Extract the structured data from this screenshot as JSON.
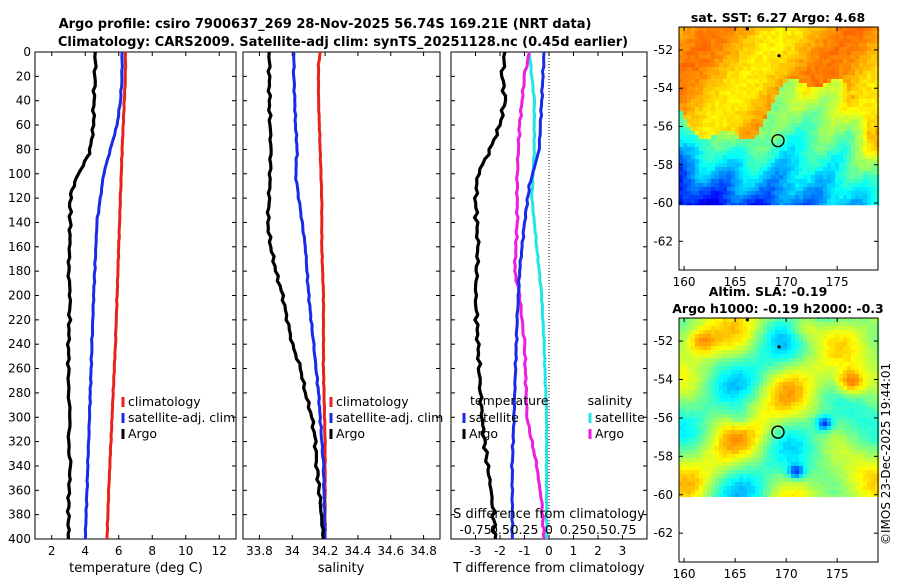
{
  "header": {
    "line1": "Argo profile: csiro 7900637_269 28-Nov-2025 56.74S 169.21E (NRT data)",
    "line2": "Climatology: CARS2009. Satellite-adj clim: synTS_20251128.nc (0.45d earlier)"
  },
  "footer_stamp": "©IMOS 23-Dec-2025 19:44:01",
  "colors": {
    "argo": "#000000",
    "clim": "#e8231e",
    "sat": "#1a2be8",
    "sal_sat": "#22e6e6",
    "sal_argo": "#ee1ee0"
  },
  "chart_data": [
    {
      "type": "line",
      "id": "temperature",
      "xlabel": "temperature (deg C)",
      "xlim": [
        1,
        13
      ],
      "xticks": [
        2,
        4,
        6,
        8,
        10,
        12
      ],
      "ylim": [
        400,
        0
      ],
      "yticks": [
        0,
        20,
        40,
        60,
        80,
        100,
        120,
        140,
        160,
        180,
        200,
        220,
        240,
        260,
        280,
        300,
        320,
        340,
        360,
        380,
        400
      ],
      "legend": [
        "climatology",
        "satellite-adj. clim",
        "Argo"
      ],
      "series": [
        {
          "name": "climatology",
          "color": "#e8231e",
          "x": [
            6.4,
            6.4,
            6.3,
            6.2,
            6.1,
            6.0,
            5.9,
            5.8,
            5.7,
            5.6,
            5.5,
            5.4,
            5.3
          ],
          "y": [
            0,
            20,
            50,
            80,
            120,
            160,
            200,
            240,
            270,
            300,
            330,
            360,
            400
          ]
        },
        {
          "name": "satellite-adj. clim",
          "color": "#1a2be8",
          "x": [
            6.2,
            6.2,
            6.1,
            5.9,
            5.5,
            5.1,
            4.9,
            4.7,
            4.6,
            4.5,
            4.4,
            4.3,
            4.2,
            4.1,
            4.0
          ],
          "y": [
            0,
            20,
            40,
            60,
            80,
            100,
            120,
            140,
            170,
            200,
            240,
            280,
            320,
            360,
            400
          ]
        },
        {
          "name": "Argo",
          "color": "#000000",
          "x": [
            4.6,
            4.6,
            4.5,
            4.5,
            4.3,
            4.0,
            3.6,
            3.3,
            3.1,
            3.1,
            3.0,
            3.1,
            3.0,
            3.0,
            3.1,
            3.0,
            3.1,
            3.0,
            3.0
          ],
          "y": [
            0,
            20,
            40,
            60,
            80,
            90,
            100,
            110,
            120,
            150,
            180,
            200,
            240,
            280,
            300,
            320,
            340,
            370,
            400
          ]
        }
      ]
    },
    {
      "type": "line",
      "id": "salinity",
      "xlabel": "salinity",
      "xlim": [
        33.7,
        34.9
      ],
      "xticks": [
        33.8,
        34,
        34.2,
        34.4,
        34.6,
        34.8
      ],
      "ylim": [
        400,
        0
      ],
      "legend": [
        "climatology",
        "satellite-adj. clim",
        "Argo"
      ],
      "series": [
        {
          "name": "climatology",
          "color": "#e8231e",
          "x": [
            34.17,
            34.16,
            34.16,
            34.17,
            34.18,
            34.18,
            34.19,
            34.19,
            34.2,
            34.2
          ],
          "y": [
            0,
            10,
            40,
            80,
            120,
            160,
            200,
            260,
            320,
            400
          ]
        },
        {
          "name": "satellite-adj. clim",
          "color": "#1a2be8",
          "x": [
            34.01,
            34.01,
            34.02,
            34.03,
            34.02,
            34.04,
            34.08,
            34.1,
            34.13,
            34.16,
            34.19,
            34.2
          ],
          "y": [
            0,
            20,
            60,
            80,
            100,
            120,
            160,
            200,
            240,
            280,
            340,
            400
          ]
        },
        {
          "name": "Argo",
          "color": "#000000",
          "x": [
            33.86,
            33.86,
            33.87,
            33.86,
            33.85,
            33.87,
            33.9,
            33.94,
            33.97,
            34.0,
            34.05,
            34.08,
            34.12,
            34.14,
            34.15,
            34.17,
            34.19
          ],
          "y": [
            0,
            40,
            80,
            120,
            140,
            160,
            180,
            200,
            220,
            240,
            260,
            280,
            300,
            320,
            340,
            370,
            400
          ]
        }
      ]
    },
    {
      "type": "line",
      "id": "differences",
      "xlabel": "T difference from climatology",
      "xlabel_top": "S difference from climatology",
      "xlim": [
        -4,
        4
      ],
      "xticks": [
        -3,
        -2,
        -1,
        0,
        1,
        2,
        3
      ],
      "xticklabels_top": [
        "-0.75",
        "0.5",
        "0.25",
        "0",
        "0.25",
        "0.5",
        "0.75"
      ],
      "ylim": [
        400,
        0
      ],
      "legend_titles": [
        "temperature",
        "salinity"
      ],
      "legend": [
        "satellite",
        "Argo",
        "satellite",
        "Argo"
      ],
      "series": [
        {
          "name": "temperature satellite",
          "color": "#1a2be8",
          "x": [
            -0.2,
            -0.3,
            -0.4,
            -0.8,
            -1.0,
            -1.2,
            -1.3,
            -1.4,
            -1.5,
            -1.5
          ],
          "y": [
            0,
            40,
            80,
            110,
            140,
            180,
            220,
            280,
            340,
            400
          ]
        },
        {
          "name": "temperature Argo",
          "color": "#000000",
          "x": [
            -1.8,
            -1.9,
            -1.8,
            -2.0,
            -2.4,
            -2.9,
            -3.0,
            -2.9,
            -3.0,
            -2.9,
            -2.8,
            -2.7,
            -2.5,
            -2.3,
            -2.2
          ],
          "y": [
            0,
            20,
            40,
            60,
            80,
            100,
            120,
            160,
            200,
            240,
            280,
            310,
            340,
            370,
            400
          ]
        },
        {
          "name": "salinity satellite",
          "color": "#22e6e6",
          "x": [
            -0.8,
            -0.7,
            -0.6,
            -0.6,
            -0.7,
            -0.5,
            -0.3,
            -0.2,
            -0.1,
            -0.1
          ],
          "y": [
            0,
            20,
            40,
            80,
            120,
            160,
            200,
            240,
            300,
            400
          ]
        },
        {
          "name": "salinity Argo",
          "color": "#ee1ee0",
          "x": [
            -0.8,
            -1.0,
            -1.2,
            -1.3,
            -1.3,
            -1.4,
            -1.2,
            -1.0,
            -0.9,
            -0.5,
            -0.3,
            -0.2
          ],
          "y": [
            0,
            20,
            60,
            100,
            140,
            180,
            200,
            240,
            300,
            340,
            370,
            400
          ]
        }
      ]
    },
    {
      "type": "heatmap",
      "id": "sst_map",
      "title": "sat. SST: 6.27 Argo: 4.68",
      "xticks": [
        160,
        165,
        170,
        175
      ],
      "yticks": [
        -52,
        -54,
        -56,
        -58,
        -60,
        -62
      ],
      "xlim": [
        159.5,
        179
      ],
      "ylim": [
        -63.5,
        -50.8
      ],
      "argo_marker": {
        "lon": 169.2,
        "lat": -56.74
      },
      "track": [
        {
          "lon": 166.2,
          "lat": -50.9
        },
        {
          "lon": 169.3,
          "lat": -52.3
        }
      ]
    },
    {
      "type": "heatmap",
      "id": "sla_map",
      "title": "Altim. SLA: -0.19",
      "subtitle": "Argo h1000: -0.19 h2000: -0.3",
      "xticks": [
        160,
        165,
        170,
        175
      ],
      "yticks": [
        -52,
        -54,
        -56,
        -58,
        -60,
        -62
      ],
      "xlim": [
        159.5,
        179
      ],
      "ylim": [
        -63.5,
        -50.8
      ],
      "argo_marker": {
        "lon": 169.2,
        "lat": -56.74
      },
      "track": [
        {
          "lon": 166.2,
          "lat": -50.9
        },
        {
          "lon": 169.3,
          "lat": -52.3
        }
      ]
    }
  ]
}
